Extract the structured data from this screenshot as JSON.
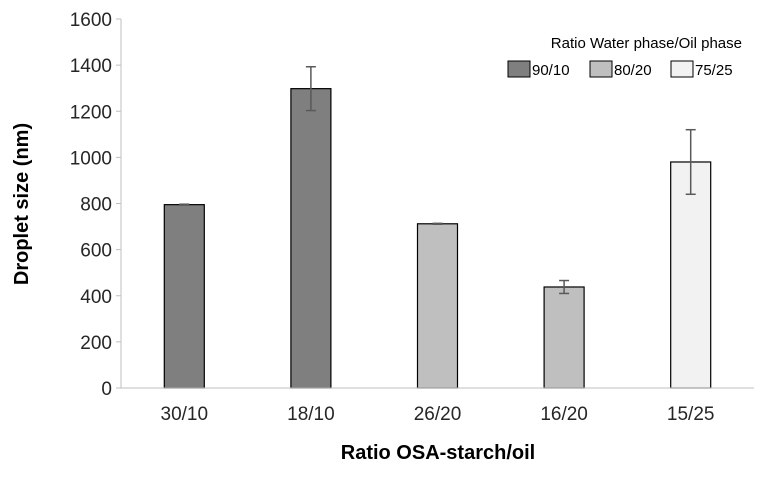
{
  "chart_data": {
    "type": "bar",
    "categories": [
      "30/10",
      "18/10",
      "26/20",
      "16/20",
      "15/25"
    ],
    "values": [
      795,
      1298,
      712,
      438,
      980
    ],
    "errors": [
      2,
      95,
      2,
      28,
      140
    ],
    "groups": [
      "90/10",
      "90/10",
      "80/20",
      "80/20",
      "75/25"
    ],
    "xlabel": "Ratio OSA-starch/oil",
    "ylabel": "Droplet size (nm)",
    "ylim": [
      0,
      1600
    ],
    "yticks": [
      0,
      200,
      400,
      600,
      800,
      1000,
      1200,
      1400,
      1600
    ],
    "legend": {
      "title": "Ratio Water phase/Oil phase",
      "position": "top-right",
      "entries": [
        {
          "label": "90/10",
          "color": "#7f7f7f"
        },
        {
          "label": "80/20",
          "color": "#bfbfbf"
        },
        {
          "label": "75/25",
          "color": "#f2f2f2"
        }
      ]
    },
    "grid": false
  }
}
